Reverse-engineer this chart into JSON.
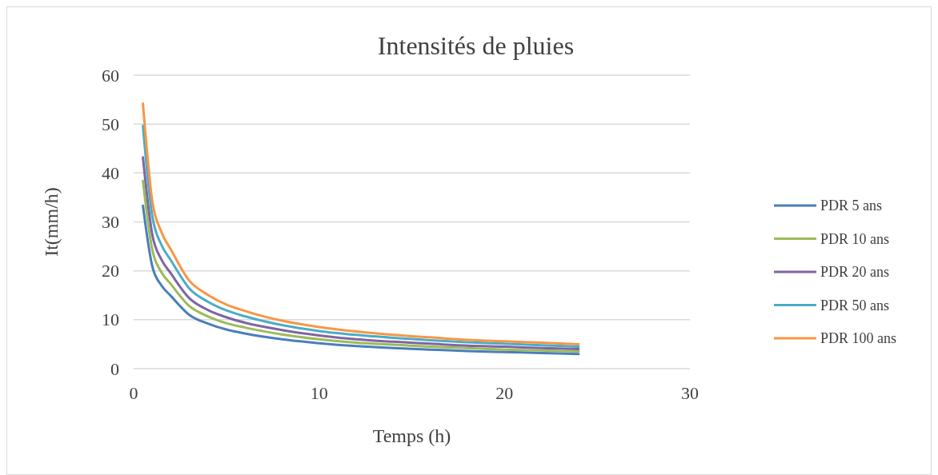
{
  "chart_data": {
    "type": "line",
    "title": "Intensités de pluies",
    "xlabel": "Temps (h)",
    "ylabel": "It(mm/h)",
    "x": [
      0.5,
      1,
      1.5,
      2,
      3,
      4,
      5,
      6,
      8,
      10,
      12,
      14,
      16,
      18,
      20,
      22,
      24
    ],
    "series": [
      {
        "name": "PDR 5 ans",
        "color": "#4a7ebb",
        "values": [
          33.3,
          21,
          17,
          14.9,
          11,
          9.2,
          8,
          7.2,
          6,
          5.2,
          4.6,
          4.2,
          3.9,
          3.6,
          3.4,
          3.2,
          3.0
        ]
      },
      {
        "name": "PDR 10 ans",
        "color": "#9bbb59",
        "values": [
          38.4,
          24.4,
          19.7,
          17.3,
          12.8,
          10.7,
          9.3,
          8.4,
          7,
          6,
          5.3,
          4.9,
          4.5,
          4.2,
          3.9,
          3.7,
          3.5
        ]
      },
      {
        "name": "PDR 20 ans",
        "color": "#8064a2",
        "values": [
          43.2,
          27.5,
          22.3,
          19.5,
          14.4,
          12,
          10.5,
          9.4,
          7.9,
          6.8,
          6,
          5.5,
          5.1,
          4.7,
          4.5,
          4.2,
          4.0
        ]
      },
      {
        "name": "PDR 50 ans",
        "color": "#4bacc6",
        "values": [
          49.6,
          31.3,
          25.3,
          22.2,
          16.4,
          13.7,
          11.9,
          10.7,
          8.9,
          7.7,
          6.9,
          6.3,
          5.8,
          5.4,
          5.1,
          4.8,
          4.5
        ]
      },
      {
        "name": "PDR 100 ans",
        "color": "#f79646",
        "values": [
          54.2,
          34.4,
          27.9,
          24.4,
          18,
          15.1,
          13.1,
          11.8,
          9.8,
          8.5,
          7.6,
          6.9,
          6.4,
          5.9,
          5.6,
          5.3,
          5.0
        ]
      }
    ],
    "xlim": [
      0,
      30
    ],
    "xticks": [
      0,
      10,
      20,
      30
    ],
    "ylim": [
      0,
      60
    ],
    "yticks": [
      0,
      10,
      20,
      30,
      40,
      50,
      60
    ],
    "grid": "y",
    "legend": "right",
    "marker": "none",
    "line_style": "solid"
  }
}
